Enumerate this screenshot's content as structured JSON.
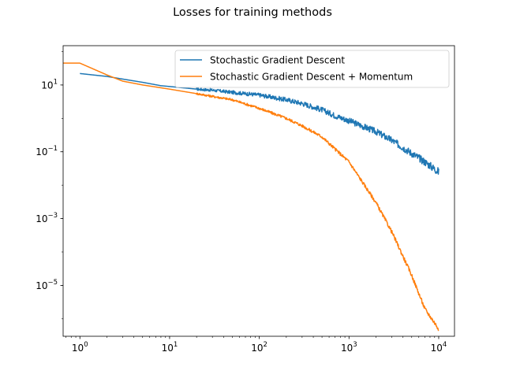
{
  "chart_data": {
    "type": "line",
    "title": "Losses for training methods",
    "xlabel": "",
    "ylabel": "",
    "xscale": "log",
    "yscale": "log",
    "xlim": [
      0.65,
      15000
    ],
    "ylim": [
      3e-07,
      150
    ],
    "xticks": [
      {
        "value": 1,
        "base": "10",
        "exp": "0"
      },
      {
        "value": 10,
        "base": "10",
        "exp": "1"
      },
      {
        "value": 100,
        "base": "10",
        "exp": "2"
      },
      {
        "value": 1000,
        "base": "10",
        "exp": "3"
      },
      {
        "value": 10000,
        "base": "10",
        "exp": "4"
      }
    ],
    "yticks": [
      {
        "value": 10,
        "base": "10",
        "exp": "1"
      },
      {
        "value": 0.1,
        "base": "10",
        "exp": "−1"
      },
      {
        "value": 0.001,
        "base": "10",
        "exp": "−3"
      },
      {
        "value": 1e-05,
        "base": "10",
        "exp": "−5"
      }
    ],
    "grid": false,
    "legend_position": "upper-right",
    "series": [
      {
        "name": "Stochastic Gradient Descent",
        "color": "#1f77b4",
        "noise": 0.04,
        "noise_end": 0.12,
        "x": [
          1,
          2,
          3,
          5,
          8,
          10,
          20,
          30,
          50,
          100,
          200,
          300,
          500,
          700,
          1000,
          2000,
          3000,
          5000,
          7000,
          10000
        ],
        "y": [
          22,
          18,
          15,
          12,
          9.5,
          9,
          7.5,
          7,
          6,
          5,
          3.6,
          2.8,
          1.8,
          1.2,
          0.85,
          0.4,
          0.22,
          0.09,
          0.05,
          0.025
        ]
      },
      {
        "name": "Stochastic Gradient Descent + Momentum",
        "color": "#ff7f0e",
        "noise": 0.03,
        "noise_end": 0.06,
        "x": [
          0.65,
          1,
          2,
          3,
          5,
          10,
          20,
          50,
          100,
          200,
          300,
          500,
          700,
          1000,
          2000,
          3000,
          5000,
          7000,
          10000
        ],
        "y": [
          45,
          45,
          20,
          13,
          10,
          7.5,
          5.5,
          3.6,
          2,
          1,
          0.6,
          0.28,
          0.12,
          0.05,
          0.003,
          0.0004,
          2e-05,
          2e-06,
          5e-07
        ]
      }
    ]
  }
}
